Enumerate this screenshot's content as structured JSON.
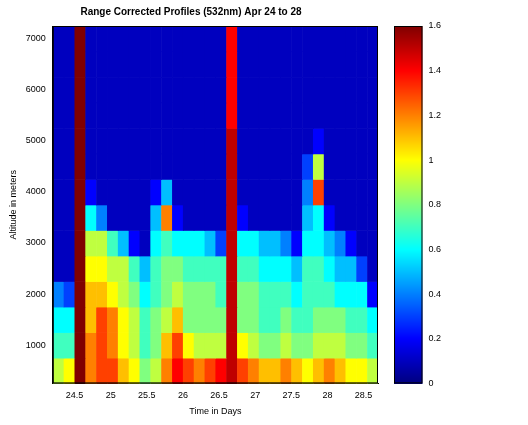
{
  "chart_data": {
    "type": "heatmap",
    "title": "Range Corrected Profiles (532nm) Apr 24 to 28",
    "x_label": "Time in Days",
    "y_label": "Altitude in meters",
    "xlim": [
      24.2,
      28.7
    ],
    "xticks": [
      24.5,
      25,
      25.5,
      26,
      26.5,
      27,
      27.5,
      28,
      28.5
    ],
    "ylim": [
      250,
      7250
    ],
    "yticks": [
      1000,
      2000,
      3000,
      4000,
      5000,
      6000,
      7000
    ],
    "x": [
      24.275,
      24.425,
      24.575,
      24.725,
      24.875,
      25.025,
      25.175,
      25.325,
      25.475,
      25.625,
      25.775,
      25.925,
      26.075,
      26.225,
      26.375,
      26.525,
      26.675,
      26.825,
      26.975,
      27.125,
      27.275,
      27.425,
      27.575,
      27.725,
      27.875,
      28.025,
      28.175,
      28.325,
      28.475,
      28.625
    ],
    "y": [
      500,
      1000,
      1500,
      2000,
      2500,
      3000,
      3500,
      4000,
      4500,
      5000,
      5500,
      6000,
      6500,
      7000
    ],
    "cells": [
      [
        0.9,
        1.0,
        1.6,
        1.2,
        1.3,
        1.3,
        1.1,
        1.0,
        0.8,
        0.9,
        1.2,
        1.4,
        1.3,
        1.2,
        1.3,
        1.4,
        1.5,
        1.3,
        1.2,
        1.1,
        1.1,
        1.2,
        1.1,
        1.0,
        1.1,
        1.2,
        1.1,
        1.0,
        1.0,
        0.9
      ],
      [
        0.7,
        0.7,
        1.6,
        1.2,
        1.3,
        1.2,
        1.0,
        0.9,
        0.7,
        0.8,
        1.1,
        1.3,
        1.0,
        0.9,
        0.9,
        0.9,
        1.5,
        1.0,
        0.9,
        0.8,
        0.8,
        0.9,
        0.8,
        0.8,
        0.9,
        0.9,
        0.9,
        0.8,
        0.8,
        0.7
      ],
      [
        0.6,
        0.6,
        1.6,
        1.1,
        1.3,
        1.2,
        1.0,
        0.9,
        0.7,
        0.8,
        0.9,
        1.1,
        0.8,
        0.8,
        0.8,
        0.8,
        1.5,
        0.8,
        0.8,
        0.7,
        0.7,
        0.8,
        0.7,
        0.7,
        0.8,
        0.8,
        0.8,
        0.7,
        0.7,
        0.6
      ],
      [
        0.4,
        0.3,
        1.6,
        1.1,
        1.1,
        1.0,
        0.9,
        0.8,
        0.6,
        0.7,
        0.8,
        0.9,
        0.8,
        0.8,
        0.8,
        0.7,
        1.5,
        0.8,
        0.8,
        0.7,
        0.7,
        0.7,
        0.6,
        0.7,
        0.7,
        0.7,
        0.6,
        0.6,
        0.6,
        0.2
      ],
      [
        0.1,
        0.1,
        1.6,
        1.0,
        1.0,
        0.9,
        0.9,
        0.7,
        0.5,
        0.7,
        0.8,
        0.8,
        0.7,
        0.7,
        0.7,
        0.7,
        1.5,
        0.7,
        0.7,
        0.6,
        0.6,
        0.6,
        0.5,
        0.7,
        0.7,
        0.6,
        0.5,
        0.5,
        0.3,
        0.1
      ],
      [
        0.1,
        0.1,
        1.6,
        0.9,
        0.9,
        0.7,
        0.5,
        0.2,
        0.1,
        0.6,
        0.7,
        0.6,
        0.6,
        0.6,
        0.5,
        0.3,
        1.5,
        0.6,
        0.6,
        0.5,
        0.5,
        0.4,
        0.2,
        0.6,
        0.6,
        0.5,
        0.4,
        0.2,
        0.1,
        0.1
      ],
      [
        0.1,
        0.1,
        1.6,
        0.6,
        0.4,
        0.1,
        0.1,
        0.1,
        0.1,
        0.5,
        1.2,
        0.2,
        0.1,
        0.1,
        0.1,
        0.1,
        1.5,
        0.2,
        0.1,
        0.1,
        0.1,
        0.1,
        0.1,
        0.5,
        0.6,
        0.2,
        0.1,
        0.1,
        0.1,
        0.1
      ],
      [
        0.1,
        0.1,
        1.6,
        0.2,
        0.1,
        0.1,
        0.1,
        0.1,
        0.1,
        0.2,
        0.5,
        0.1,
        0.1,
        0.1,
        0.1,
        0.1,
        1.5,
        0.1,
        0.1,
        0.1,
        0.1,
        0.1,
        0.1,
        0.4,
        1.3,
        0.1,
        0.1,
        0.1,
        0.1,
        0.1
      ],
      [
        0.1,
        0.1,
        1.6,
        0.1,
        0.1,
        0.1,
        0.1,
        0.1,
        0.1,
        0.1,
        0.1,
        0.1,
        0.1,
        0.1,
        0.1,
        0.1,
        1.5,
        0.1,
        0.1,
        0.1,
        0.1,
        0.1,
        0.1,
        0.3,
        0.9,
        0.1,
        0.1,
        0.1,
        0.1,
        0.1
      ],
      [
        0.1,
        0.1,
        1.6,
        0.1,
        0.1,
        0.1,
        0.1,
        0.1,
        0.1,
        0.1,
        0.1,
        0.1,
        0.1,
        0.1,
        0.1,
        0.1,
        1.5,
        0.1,
        0.1,
        0.1,
        0.1,
        0.1,
        0.1,
        0.1,
        0.2,
        0.1,
        0.1,
        0.1,
        0.1,
        0.1
      ],
      [
        0.1,
        0.1,
        1.6,
        0.1,
        0.1,
        0.1,
        0.1,
        0.1,
        0.1,
        0.1,
        0.1,
        0.1,
        0.1,
        0.1,
        0.1,
        0.1,
        1.4,
        0.1,
        0.1,
        0.1,
        0.1,
        0.1,
        0.1,
        0.1,
        0.1,
        0.1,
        0.1,
        0.1,
        0.1,
        0.1
      ],
      [
        0.1,
        0.1,
        1.6,
        0.1,
        0.1,
        0.1,
        0.1,
        0.1,
        0.1,
        0.1,
        0.1,
        0.1,
        0.1,
        0.1,
        0.1,
        0.1,
        1.4,
        0.1,
        0.1,
        0.1,
        0.1,
        0.1,
        0.1,
        0.1,
        0.1,
        0.1,
        0.1,
        0.1,
        0.1,
        0.1
      ],
      [
        0.1,
        0.1,
        1.6,
        0.1,
        0.1,
        0.1,
        0.1,
        0.1,
        0.1,
        0.1,
        0.1,
        0.1,
        0.1,
        0.1,
        0.1,
        0.1,
        1.4,
        0.1,
        0.1,
        0.1,
        0.1,
        0.1,
        0.1,
        0.1,
        0.1,
        0.1,
        0.1,
        0.1,
        0.1,
        0.1
      ],
      [
        0.1,
        0.1,
        1.6,
        0.1,
        0.1,
        0.1,
        0.1,
        0.1,
        0.1,
        0.1,
        0.1,
        0.1,
        0.1,
        0.1,
        0.1,
        0.1,
        1.4,
        0.1,
        0.1,
        0.1,
        0.1,
        0.1,
        0.1,
        0.1,
        0.1,
        0.1,
        0.1,
        0.1,
        0.1,
        0.1
      ]
    ],
    "colorbar": {
      "range": [
        0,
        1.6
      ],
      "ticks": [
        0,
        0.2,
        0.4,
        0.6,
        0.8,
        1,
        1.2,
        1.4,
        1.6
      ]
    }
  }
}
